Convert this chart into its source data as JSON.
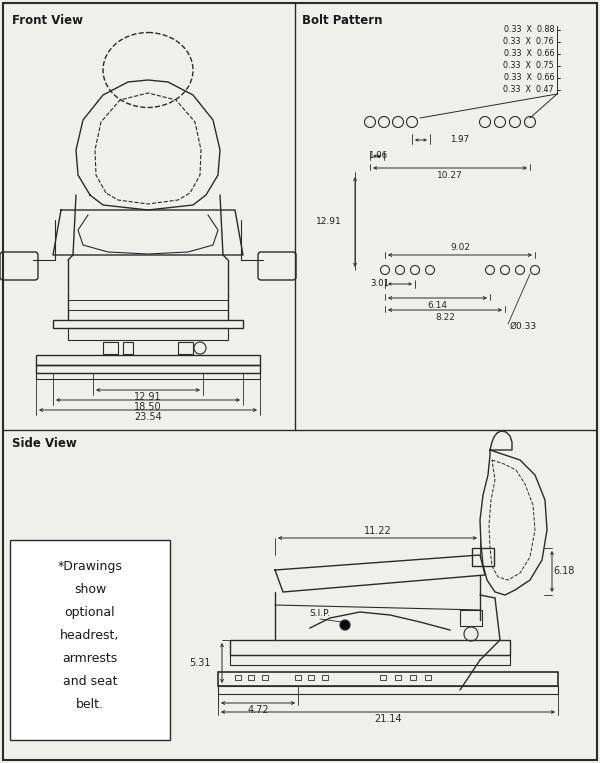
{
  "bg_color": "#f0f0eb",
  "line_color": "#2a2a2a",
  "text_color": "#1a1a1a",
  "white": "#ffffff",
  "title_front": "Front View",
  "title_bolt": "Bolt Pattern",
  "title_side": "Side View",
  "note_lines": [
    "*Drawings",
    "show",
    "optional",
    "headrest,",
    "armrests",
    "and seat",
    "belt."
  ],
  "front_dim1": "12.91",
  "front_dim2": "18.50",
  "front_dim3": "23.54",
  "bolt_row1": "0.33  X  0.88",
  "bolt_row2": "0.33  X  0.76",
  "bolt_row3": "0.33  X  0.66",
  "bolt_row4": "0.33  X  0.75",
  "bolt_row5": "0.33  X  0.66",
  "bolt_row6": "0.33  X  0.47",
  "b_197": "1.97",
  "b_106": "1.06",
  "b_1027": "10.27",
  "b_1291": "12.91",
  "b_902": "9.02",
  "b_301": "3.01",
  "b_614": "6.14",
  "b_822": "8.22",
  "b_033": "Ø0.33",
  "s_618": "6.18",
  "s_1122": "11.22",
  "s_531": "5.31",
  "s_472": "4.72",
  "s_2114": "21.14",
  "sip": "S.I.P."
}
